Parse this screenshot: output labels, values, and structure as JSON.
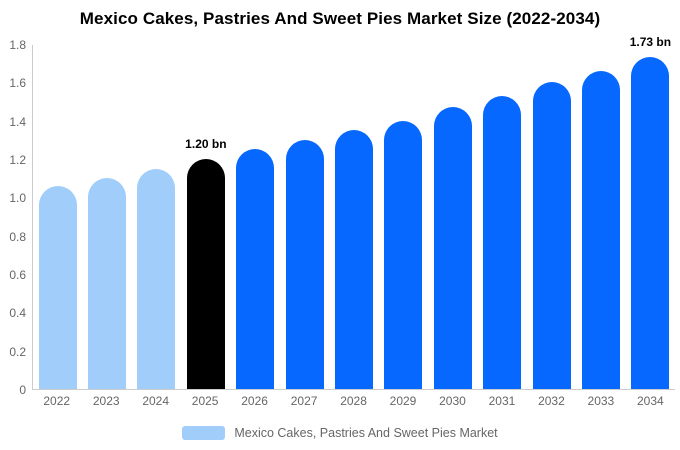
{
  "title": "Mexico Cakes, Pastries And Sweet Pies Market Size (2022-2034)",
  "colors": {
    "historical_bar": "#A1CDFB",
    "highlight_bar": "#000000",
    "forecast_bar": "#0668FE",
    "axis_line": "#CCCCCC",
    "axis_label_text": "#666666",
    "annotation_text": "#000000",
    "legend_text": "#666666",
    "background": "#FFFFFF"
  },
  "chart_data": {
    "type": "bar",
    "title": "Mexico Cakes, Pastries And Sweet Pies Market Size (2022-2034)",
    "xlabel": "",
    "ylabel": "",
    "unit": "bn",
    "categories": [
      "2022",
      "2023",
      "2024",
      "2025",
      "2026",
      "2027",
      "2028",
      "2029",
      "2030",
      "2031",
      "2032",
      "2033",
      "2034"
    ],
    "values": [
      1.06,
      1.1,
      1.15,
      1.2,
      1.25,
      1.3,
      1.35,
      1.4,
      1.47,
      1.53,
      1.6,
      1.66,
      1.73
    ],
    "bar_colors": [
      "#A1CDFB",
      "#A1CDFB",
      "#A1CDFB",
      "#000000",
      "#0668FE",
      "#0668FE",
      "#0668FE",
      "#0668FE",
      "#0668FE",
      "#0668FE",
      "#0668FE",
      "#0668FE",
      "#0668FE"
    ],
    "annotations": [
      {
        "index": 3,
        "category": "2025",
        "text": "1.20 bn"
      },
      {
        "index": 12,
        "category": "2034",
        "text": "1.73 bn"
      }
    ],
    "ylim": [
      0,
      1.8
    ],
    "y_ticks": [
      {
        "value": 1.8,
        "label": "1.8"
      },
      {
        "value": 1.6,
        "label": "1.6"
      },
      {
        "value": 1.4,
        "label": "1.4"
      },
      {
        "value": 1.2,
        "label": "1.2"
      },
      {
        "value": 1.0,
        "label": "1.0"
      },
      {
        "value": 0.8,
        "label": "0.8"
      },
      {
        "value": 0.6,
        "label": "0.6"
      },
      {
        "value": 0.4,
        "label": "0.4"
      },
      {
        "value": 0.2,
        "label": "0.2"
      },
      {
        "value": 0,
        "label": "0"
      }
    ],
    "grid": false,
    "legend_position": "bottom"
  },
  "legend": {
    "label": "Mexico Cakes, Pastries And Sweet Pies Market",
    "swatch_color": "#A1CDFB"
  }
}
